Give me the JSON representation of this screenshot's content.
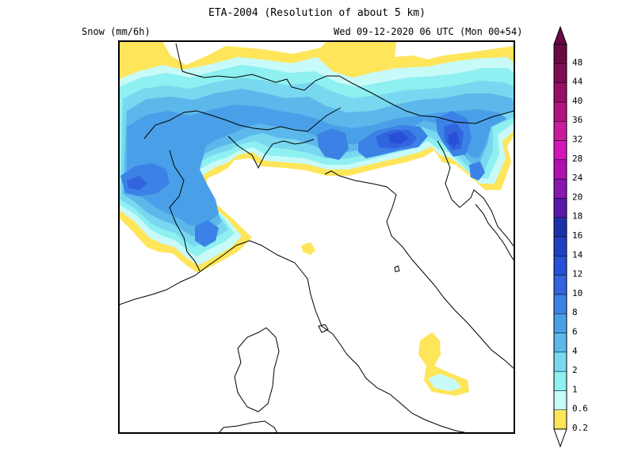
{
  "title": "ETA-2004 (Resolution of about 5 km)",
  "variable_label": "Snow (mm/6h)",
  "valid_time": "Wed 09-12-2020 06 UTC (Mon 00+54)",
  "colorbar": {
    "labels": [
      "0.2",
      "0.6",
      "1",
      "2",
      "4",
      "6",
      "8",
      "10",
      "12",
      "14",
      "16",
      "18",
      "20",
      "24",
      "28",
      "32",
      "36",
      "40",
      "44",
      "48"
    ],
    "colors": [
      "#ffe55a",
      "#c8fafa",
      "#8ef0f0",
      "#78d8f0",
      "#5cb8ea",
      "#4aa0e8",
      "#3c82e6",
      "#3264e0",
      "#2850d6",
      "#2040c4",
      "#1c30a8",
      "#581aa8",
      "#8818b0",
      "#b012b0",
      "#d018b8",
      "#c81c9c",
      "#b0147e",
      "#981066",
      "#800d52",
      "#6a0a44"
    ]
  }
}
